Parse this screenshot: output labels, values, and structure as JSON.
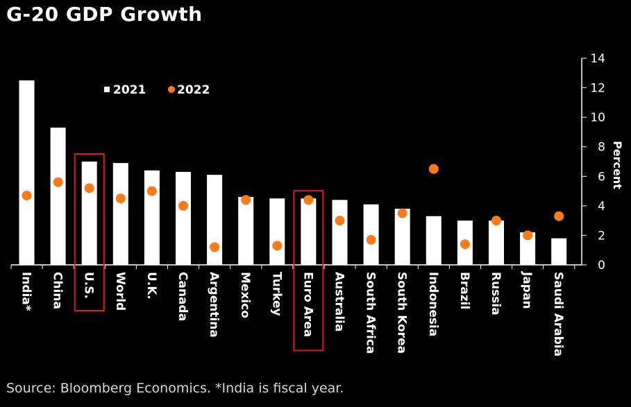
{
  "chart_data": {
    "type": "bar",
    "title": "G-20 GDP Growth",
    "source": "Source: Bloomberg Economics. *India is fiscal year.",
    "ylabel": "Percent",
    "ylim": [
      0,
      14
    ],
    "yticks": [
      0,
      2,
      4,
      6,
      8,
      10,
      12,
      14
    ],
    "legend_position": "top-left",
    "categories": [
      "India*",
      "China",
      "U.S.",
      "World",
      "U.K.",
      "Canada",
      "Argentina",
      "Mexico",
      "Turkey",
      "Euro Area",
      "Australia",
      "South Africa",
      "South Korea",
      "Indonesia",
      "Brazil",
      "Russia",
      "Japan",
      "Saudi Arabia"
    ],
    "highlighted": [
      "U.S.",
      "Euro Area"
    ],
    "series": [
      {
        "name": "2021",
        "mark": "bar",
        "color": "#ffffff",
        "values": [
          12.5,
          9.3,
          7.0,
          6.9,
          6.4,
          6.3,
          6.1,
          4.6,
          4.5,
          4.5,
          4.4,
          4.1,
          3.8,
          3.3,
          3.0,
          3.0,
          2.2,
          1.8
        ]
      },
      {
        "name": "2022",
        "mark": "dot",
        "color": "#ff7a1a",
        "values": [
          4.7,
          5.6,
          5.2,
          4.5,
          5.0,
          4.0,
          1.2,
          4.4,
          1.3,
          4.4,
          3.0,
          1.7,
          3.5,
          6.5,
          1.4,
          3.0,
          2.0,
          3.3
        ]
      }
    ],
    "highlight_color": "#e0191f"
  }
}
